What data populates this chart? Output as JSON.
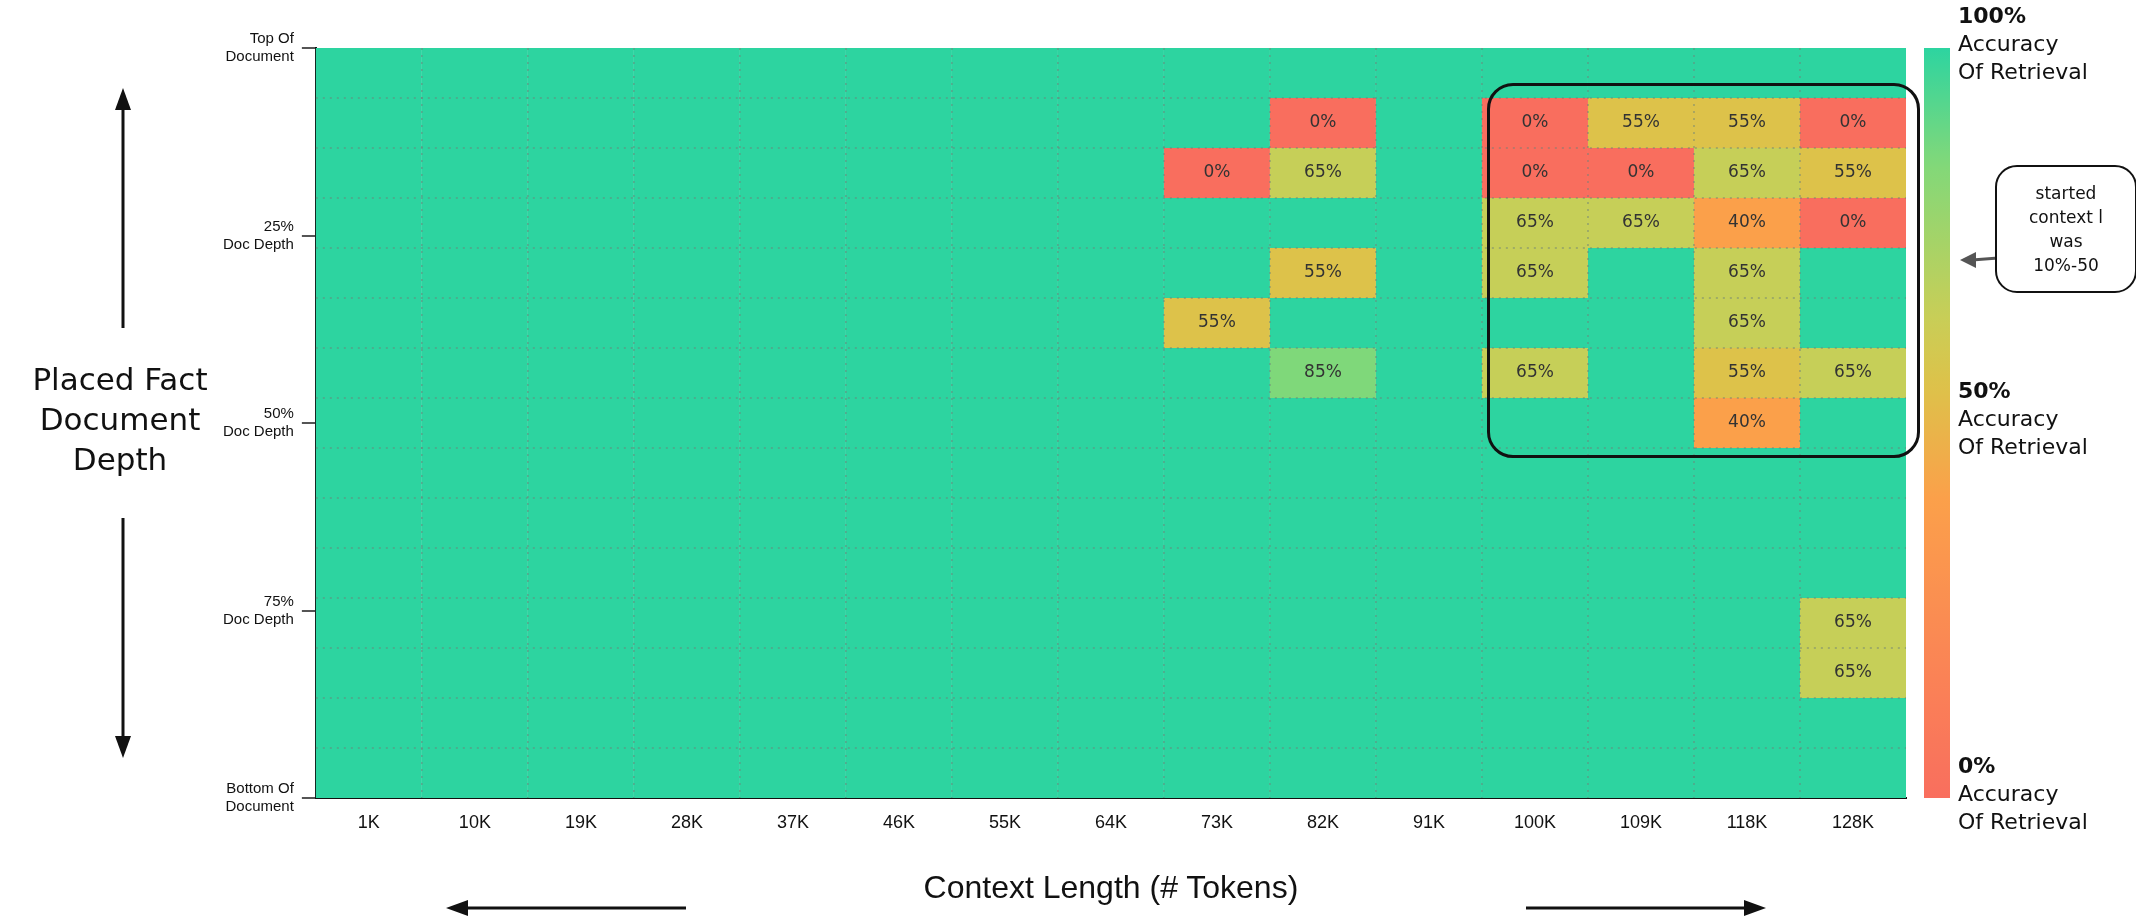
{
  "chart_data": {
    "type": "heatmap",
    "xlabel": "Context Length (# Tokens)",
    "ylabel": "Placed Fact Document Depth",
    "categories": [
      "1K",
      "10K",
      "19K",
      "28K",
      "37K",
      "46K",
      "55K",
      "64K",
      "73K",
      "82K",
      "91K",
      "100K",
      "109K",
      "118K",
      "128K"
    ],
    "ylim": [
      100,
      0
    ],
    "yticks": [
      {
        "value": 0,
        "label": "Top Of\nDocument"
      },
      {
        "value": 25,
        "label": "25%\nDoc Depth"
      },
      {
        "value": 50,
        "label": "50%\nDoc Depth"
      },
      {
        "value": 75,
        "label": "75%\nDoc Depth"
      },
      {
        "value": 100,
        "label": "Bottom Of\nDocument"
      }
    ],
    "cells": [
      [
        100,
        100,
        100,
        100,
        100,
        100,
        100,
        100,
        100,
        100,
        100,
        100,
        100,
        100,
        100
      ],
      [
        100,
        100,
        100,
        100,
        100,
        100,
        100,
        100,
        100,
        0,
        100,
        0,
        55,
        55,
        0
      ],
      [
        100,
        100,
        100,
        100,
        100,
        100,
        100,
        100,
        0,
        65,
        100,
        0,
        0,
        65,
        55
      ],
      [
        100,
        100,
        100,
        100,
        100,
        100,
        100,
        100,
        100,
        100,
        100,
        65,
        65,
        40,
        0
      ],
      [
        100,
        100,
        100,
        100,
        100,
        100,
        100,
        100,
        100,
        55,
        100,
        65,
        100,
        65,
        100
      ],
      [
        100,
        100,
        100,
        100,
        100,
        100,
        100,
        100,
        55,
        100,
        100,
        100,
        100,
        65,
        100
      ],
      [
        100,
        100,
        100,
        100,
        100,
        100,
        100,
        100,
        100,
        85,
        100,
        65,
        100,
        55,
        65
      ],
      [
        100,
        100,
        100,
        100,
        100,
        100,
        100,
        100,
        100,
        100,
        100,
        100,
        100,
        40,
        100
      ],
      [
        100,
        100,
        100,
        100,
        100,
        100,
        100,
        100,
        100,
        100,
        100,
        100,
        100,
        100,
        100
      ],
      [
        100,
        100,
        100,
        100,
        100,
        100,
        100,
        100,
        100,
        100,
        100,
        100,
        100,
        100,
        100
      ],
      [
        100,
        100,
        100,
        100,
        100,
        100,
        100,
        100,
        100,
        100,
        100,
        100,
        100,
        100,
        100
      ],
      [
        100,
        100,
        100,
        100,
        100,
        100,
        100,
        100,
        100,
        100,
        100,
        100,
        100,
        100,
        65
      ],
      [
        100,
        100,
        100,
        100,
        100,
        100,
        100,
        100,
        100,
        100,
        100,
        100,
        100,
        100,
        65
      ],
      [
        100,
        100,
        100,
        100,
        100,
        100,
        100,
        100,
        100,
        100,
        100,
        100,
        100,
        100,
        100
      ],
      [
        100,
        100,
        100,
        100,
        100,
        100,
        100,
        100,
        100,
        100,
        100,
        100,
        100,
        100,
        100
      ]
    ],
    "cell_labels": [
      [
        null,
        null,
        null,
        null,
        null,
        null,
        null,
        null,
        null,
        null,
        null,
        null,
        null,
        null,
        null
      ],
      [
        null,
        null,
        null,
        null,
        null,
        null,
        null,
        null,
        null,
        "0%",
        null,
        "0%",
        "55%",
        "55%",
        "0%"
      ],
      [
        null,
        null,
        null,
        null,
        null,
        null,
        null,
        null,
        "0%",
        "65%",
        null,
        "0%",
        "0%",
        "65%",
        "55%"
      ],
      [
        null,
        null,
        null,
        null,
        null,
        null,
        null,
        null,
        null,
        null,
        null,
        "65%",
        "65%",
        "40%",
        "0%"
      ],
      [
        null,
        null,
        null,
        null,
        null,
        null,
        null,
        null,
        null,
        "55%",
        null,
        "65%",
        null,
        "65%",
        null
      ],
      [
        null,
        null,
        null,
        null,
        null,
        null,
        null,
        null,
        "55%",
        null,
        null,
        null,
        null,
        "65%",
        null
      ],
      [
        null,
        null,
        null,
        null,
        null,
        null,
        null,
        null,
        null,
        "85%",
        null,
        "65%",
        null,
        "55%",
        "65%"
      ],
      [
        null,
        null,
        null,
        null,
        null,
        null,
        null,
        null,
        null,
        null,
        null,
        null,
        null,
        "40%",
        null
      ],
      [
        null,
        null,
        null,
        null,
        null,
        null,
        null,
        null,
        null,
        null,
        null,
        null,
        null,
        null,
        null
      ],
      [
        null,
        null,
        null,
        null,
        null,
        null,
        null,
        null,
        null,
        null,
        null,
        null,
        null,
        null,
        null
      ],
      [
        null,
        null,
        null,
        null,
        null,
        null,
        null,
        null,
        null,
        null,
        null,
        null,
        null,
        null,
        null
      ],
      [
        null,
        null,
        null,
        null,
        null,
        null,
        null,
        null,
        null,
        null,
        null,
        null,
        null,
        null,
        "65%"
      ],
      [
        null,
        null,
        null,
        null,
        null,
        null,
        null,
        null,
        null,
        null,
        null,
        null,
        null,
        null,
        "65%"
      ],
      [
        null,
        null,
        null,
        null,
        null,
        null,
        null,
        null,
        null,
        null,
        null,
        null,
        null,
        null,
        null
      ],
      [
        null,
        null,
        null,
        null,
        null,
        null,
        null,
        null,
        null,
        null,
        null,
        null,
        null,
        null,
        null
      ]
    ],
    "clim": [
      0,
      100
    ],
    "cticks": [
      {
        "value": 0,
        "label": "0%\nAccuracy\nOf Retrieval"
      },
      {
        "value": 50,
        "label": "50%\nAccuracy\nOf Retrieval"
      },
      {
        "value": 100,
        "label": "100%\nAccuracy\nOf Retrieval"
      }
    ],
    "grid": true,
    "annotations": [
      "started\ncontext l\nwas\n10%-50"
    ]
  }
}
